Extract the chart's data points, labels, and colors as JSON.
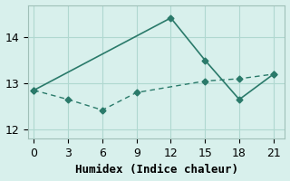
{
  "xlabel": "Humidex (Indice chaleur)",
  "background_color": "#d8f0ec",
  "grid_color": "#b0d8d0",
  "line_color": "#2a7a6a",
  "x_ticks": [
    0,
    3,
    6,
    9,
    12,
    15,
    18,
    21
  ],
  "ylim": [
    11.8,
    14.7
  ],
  "xlim": [
    -0.5,
    22
  ],
  "line1_x": [
    0,
    12,
    15,
    18,
    21
  ],
  "line1_y": [
    12.85,
    14.42,
    13.5,
    12.65,
    13.2
  ],
  "line2_x": [
    0,
    3,
    6,
    9,
    15,
    18,
    21
  ],
  "line2_y": [
    12.85,
    12.65,
    12.42,
    12.8,
    13.05,
    13.1,
    13.2
  ],
  "yticks": [
    12,
    13,
    14
  ],
  "tick_fontsize": 9,
  "label_fontsize": 9
}
